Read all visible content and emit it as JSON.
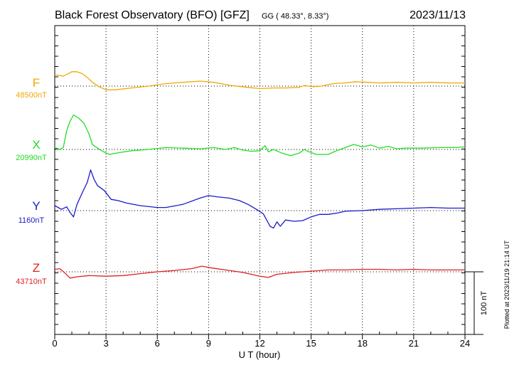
{
  "header": {
    "title": "Black Forest Observatory (BFO)  [GFZ]",
    "coords": "GG ( 48.33°,   8.33°)",
    "date": "2023/11/13"
  },
  "footer": {
    "plotted": "Plotted at 2023/11/19 21:14 UT"
  },
  "scale": {
    "label": "100 nT",
    "nT": 100
  },
  "chart_data": {
    "type": "line",
    "xlabel": "U T (hour)",
    "xlim": [
      0,
      24
    ],
    "xticks": [
      0,
      3,
      6,
      9,
      12,
      15,
      18,
      21,
      24
    ],
    "grid": true,
    "series": [
      {
        "name": "F",
        "baseline_label": "48500nT",
        "baseline_nT": 48500,
        "color": "#f0a800",
        "points": [
          [
            0,
            18
          ],
          [
            0.5,
            16
          ],
          [
            0.8,
            20
          ],
          [
            1.0,
            23
          ],
          [
            1.3,
            23
          ],
          [
            1.6,
            20
          ],
          [
            1.9,
            14
          ],
          [
            2.2,
            6
          ],
          [
            2.6,
            -1
          ],
          [
            3.0,
            -6
          ],
          [
            3.5,
            -6
          ],
          [
            4.5,
            -3
          ],
          [
            5.5,
            0
          ],
          [
            6.5,
            4
          ],
          [
            7.5,
            6
          ],
          [
            8.5,
            8
          ],
          [
            9.3,
            6
          ],
          [
            10.3,
            1
          ],
          [
            11.3,
            -2
          ],
          [
            12.0,
            -4
          ],
          [
            12.8,
            -3
          ],
          [
            13.5,
            -3
          ],
          [
            14.3,
            -2
          ],
          [
            14.6,
            1
          ],
          [
            15.1,
            -1
          ],
          [
            15.6,
            0
          ],
          [
            16.3,
            4
          ],
          [
            17.0,
            5
          ],
          [
            17.6,
            7
          ],
          [
            18.3,
            6
          ],
          [
            19.0,
            5
          ],
          [
            20.0,
            6
          ],
          [
            21.0,
            5
          ],
          [
            22.0,
            6
          ],
          [
            23.0,
            5
          ],
          [
            24.0,
            5
          ]
        ]
      },
      {
        "name": "X",
        "baseline_label": "20990nT",
        "baseline_nT": 20990,
        "color": "#22dd22",
        "points": [
          [
            0,
            3
          ],
          [
            0.3,
            0
          ],
          [
            0.5,
            3
          ],
          [
            0.7,
            30
          ],
          [
            0.9,
            45
          ],
          [
            1.1,
            55
          ],
          [
            1.4,
            50
          ],
          [
            1.7,
            42
          ],
          [
            2.0,
            25
          ],
          [
            2.2,
            8
          ],
          [
            2.5,
            2
          ],
          [
            2.8,
            -3
          ],
          [
            3.2,
            -8
          ],
          [
            3.8,
            -5
          ],
          [
            4.5,
            -2
          ],
          [
            5.5,
            0
          ],
          [
            6.5,
            3
          ],
          [
            7.5,
            2
          ],
          [
            8.5,
            1
          ],
          [
            9.3,
            3
          ],
          [
            10.0,
            0
          ],
          [
            10.5,
            3
          ],
          [
            11.0,
            -1
          ],
          [
            11.5,
            -3
          ],
          [
            12.0,
            -2
          ],
          [
            12.3,
            6
          ],
          [
            12.5,
            -4
          ],
          [
            12.8,
            0
          ],
          [
            13.3,
            -6
          ],
          [
            13.8,
            -10
          ],
          [
            14.3,
            -6
          ],
          [
            14.6,
            0
          ],
          [
            14.8,
            -3
          ],
          [
            15.3,
            -8
          ],
          [
            16.0,
            -8
          ],
          [
            16.4,
            -3
          ],
          [
            16.7,
            0
          ],
          [
            17.1,
            4
          ],
          [
            17.5,
            8
          ],
          [
            18.0,
            4
          ],
          [
            18.5,
            7
          ],
          [
            19.0,
            2
          ],
          [
            19.5,
            5
          ],
          [
            20.0,
            1
          ],
          [
            20.5,
            2
          ],
          [
            21.5,
            2
          ],
          [
            22.5,
            3
          ],
          [
            23.5,
            3
          ],
          [
            24.0,
            4
          ]
        ]
      },
      {
        "name": "Y",
        "baseline_label": "1160nT",
        "baseline_nT": 1160,
        "color": "#1a1acc",
        "points": [
          [
            0,
            8
          ],
          [
            0.4,
            2
          ],
          [
            0.7,
            6
          ],
          [
            0.9,
            -3
          ],
          [
            1.1,
            -10
          ],
          [
            1.3,
            10
          ],
          [
            1.6,
            28
          ],
          [
            1.9,
            45
          ],
          [
            2.1,
            65
          ],
          [
            2.3,
            50
          ],
          [
            2.5,
            40
          ],
          [
            2.9,
            32
          ],
          [
            3.3,
            18
          ],
          [
            3.7,
            16
          ],
          [
            4.2,
            12
          ],
          [
            5.0,
            8
          ],
          [
            6.0,
            5
          ],
          [
            6.5,
            5
          ],
          [
            7.5,
            10
          ],
          [
            8.5,
            20
          ],
          [
            9.0,
            24
          ],
          [
            9.5,
            22
          ],
          [
            10.2,
            20
          ],
          [
            10.8,
            16
          ],
          [
            11.3,
            10
          ],
          [
            11.8,
            2
          ],
          [
            12.2,
            -5
          ],
          [
            12.4,
            -15
          ],
          [
            12.6,
            -25
          ],
          [
            12.8,
            -28
          ],
          [
            13.0,
            -18
          ],
          [
            13.2,
            -25
          ],
          [
            13.5,
            -15
          ],
          [
            14.0,
            -17
          ],
          [
            14.5,
            -16
          ],
          [
            15.0,
            -10
          ],
          [
            15.5,
            -6
          ],
          [
            16.0,
            -6
          ],
          [
            16.5,
            -4
          ],
          [
            17.0,
            -1
          ],
          [
            18.0,
            0
          ],
          [
            19.0,
            2
          ],
          [
            20.0,
            3
          ],
          [
            21.0,
            4
          ],
          [
            22.0,
            5
          ],
          [
            23.0,
            4
          ],
          [
            24.0,
            4
          ]
        ]
      },
      {
        "name": "Z",
        "baseline_label": "43710nT",
        "baseline_nT": 43710,
        "color": "#e02020",
        "points": [
          [
            0,
            4
          ],
          [
            0.3,
            5
          ],
          [
            0.6,
            -2
          ],
          [
            0.9,
            -10
          ],
          [
            1.3,
            -8
          ],
          [
            2.0,
            -6
          ],
          [
            3.0,
            -7
          ],
          [
            4.0,
            -6
          ],
          [
            5.0,
            -3
          ],
          [
            6.0,
            0
          ],
          [
            7.0,
            2
          ],
          [
            8.0,
            5
          ],
          [
            8.6,
            9
          ],
          [
            9.2,
            6
          ],
          [
            10.0,
            3
          ],
          [
            11.0,
            -1
          ],
          [
            11.5,
            -4
          ],
          [
            12.0,
            -7
          ],
          [
            12.5,
            -9
          ],
          [
            13.0,
            -4
          ],
          [
            14.0,
            -1
          ],
          [
            15.0,
            1
          ],
          [
            16.0,
            3
          ],
          [
            17.0,
            3
          ],
          [
            18.0,
            4
          ],
          [
            19.0,
            4
          ],
          [
            20.0,
            3
          ],
          [
            21.0,
            4
          ],
          [
            22.0,
            3
          ],
          [
            23.0,
            3
          ],
          [
            24.0,
            3
          ]
        ]
      }
    ]
  }
}
